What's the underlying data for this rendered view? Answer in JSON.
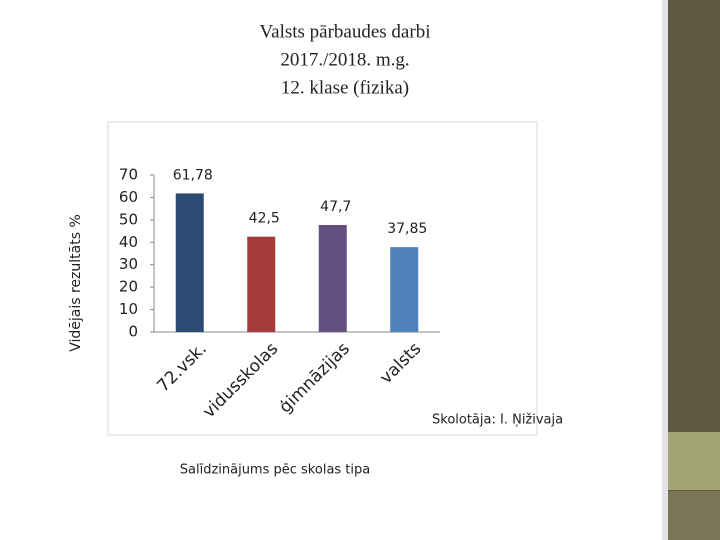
{
  "chart_data": {
    "type": "bar",
    "title": [
      "Valsts pārbaudes darbi",
      "2017./2018. m.g.",
      "12. klase (fizika)"
    ],
    "y_label": "Vidējais rezultāts %",
    "x_label": "Salīdzinājums pēc skolas tipa",
    "annotation": "Skolotāja: I. Ņiživaja",
    "categories": [
      "72.vsk.",
      "vidusskolas",
      "ģimnāzijas",
      "valsts"
    ],
    "values": [
      61.78,
      42.5,
      47.7,
      37.85
    ],
    "value_labels": [
      "61,78",
      "42,5",
      "47,7",
      "37,85"
    ],
    "colors": [
      "#2b4a74",
      "#a23b3a",
      "#634f80",
      "#4f81bd"
    ],
    "ylim": [
      0,
      70
    ],
    "yticks": [
      0,
      10,
      20,
      30,
      40,
      50,
      60,
      70
    ]
  }
}
